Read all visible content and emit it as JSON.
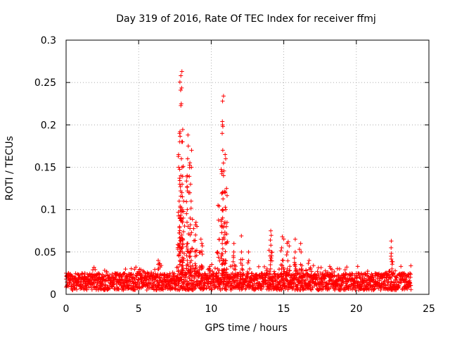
{
  "chart_data": {
    "type": "scatter",
    "title": "Day 319 of 2016, Rate Of TEC Index for receiver ffmj",
    "xlabel": "GPS time / hours",
    "ylabel": "ROTI / TECUs",
    "xlim": [
      0,
      25
    ],
    "ylim": [
      0,
      0.3
    ],
    "xticks": [
      0,
      5,
      10,
      15,
      20,
      25
    ],
    "xtick_labels": [
      "0",
      "5",
      "10",
      "15",
      "20",
      "25"
    ],
    "yticks": [
      0,
      0.05,
      0.1,
      0.15,
      0.2,
      0.25,
      0.3
    ],
    "ytick_labels": [
      "0",
      "0.05",
      "0.1",
      "0.15",
      "0.2",
      "0.25",
      "0.3"
    ],
    "grid": true,
    "marker": "+",
    "color": "#ff0000",
    "background_band": {
      "x": [
        0,
        23.8
      ],
      "y_min": 0.005,
      "y_max": 0.025
    },
    "spikes": [
      {
        "x": 6.4,
        "y": [
          0.02,
          0.04,
          0.036,
          0.03
        ]
      },
      {
        "x": 7.8,
        "y": [
          0.04,
          0.06,
          0.08,
          0.09,
          0.11,
          0.13,
          0.15,
          0.165,
          0.18,
          0.19
        ]
      },
      {
        "x": 7.95,
        "y": [
          0.05,
          0.07,
          0.1,
          0.12,
          0.14,
          0.16,
          0.18,
          0.225,
          0.241,
          0.258,
          0.263
        ]
      },
      {
        "x": 8.05,
        "y": [
          0.04,
          0.06,
          0.09,
          0.11,
          0.13,
          0.15,
          0.18
        ]
      },
      {
        "x": 8.4,
        "y": [
          0.04,
          0.06,
          0.08,
          0.1,
          0.12,
          0.14,
          0.16,
          0.175,
          0.188
        ]
      },
      {
        "x": 8.6,
        "y": [
          0.03,
          0.05,
          0.07,
          0.09,
          0.11,
          0.13,
          0.15,
          0.17
        ]
      },
      {
        "x": 8.9,
        "y": [
          0.03,
          0.05,
          0.07,
          0.085,
          0.082
        ]
      },
      {
        "x": 9.3,
        "y": [
          0.03,
          0.05,
          0.065,
          0.06
        ]
      },
      {
        "x": 10.5,
        "y": [
          0.03,
          0.05,
          0.065,
          0.105
        ]
      },
      {
        "x": 10.8,
        "y": [
          0.04,
          0.06,
          0.08,
          0.1,
          0.12,
          0.14,
          0.155,
          0.17,
          0.19,
          0.204,
          0.228,
          0.234
        ]
      },
      {
        "x": 11.0,
        "y": [
          0.04,
          0.06,
          0.08,
          0.1,
          0.12,
          0.125,
          0.16,
          0.165
        ]
      },
      {
        "x": 11.6,
        "y": [
          0.03,
          0.05,
          0.06
        ]
      },
      {
        "x": 12.1,
        "y": [
          0.03,
          0.05,
          0.069
        ]
      },
      {
        "x": 12.6,
        "y": [
          0.03,
          0.05
        ]
      },
      {
        "x": 14.1,
        "y": [
          0.03,
          0.04,
          0.05,
          0.058,
          0.075
        ]
      },
      {
        "x": 14.9,
        "y": [
          0.03,
          0.04,
          0.055,
          0.068
        ]
      },
      {
        "x": 15.3,
        "y": [
          0.03,
          0.05,
          0.062
        ]
      },
      {
        "x": 15.8,
        "y": [
          0.03,
          0.05,
          0.065
        ]
      },
      {
        "x": 16.2,
        "y": [
          0.03,
          0.05,
          0.06
        ]
      },
      {
        "x": 16.8,
        "y": [
          0.03,
          0.04
        ]
      },
      {
        "x": 22.4,
        "y": [
          0.03,
          0.045,
          0.055,
          0.063
        ]
      }
    ]
  }
}
